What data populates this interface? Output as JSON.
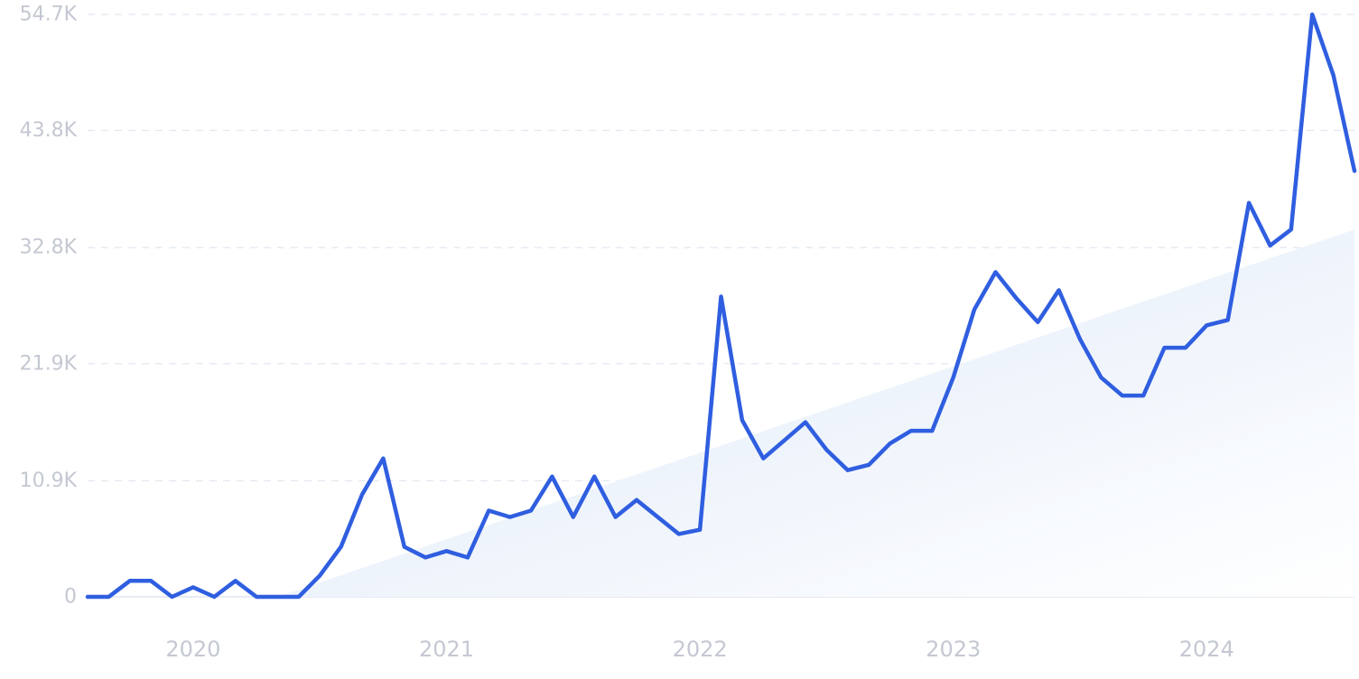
{
  "colors": {
    "line": "#2f5ee0",
    "trend_fill_start": "#dde8f8",
    "trend_fill_end": "#ffffff",
    "grid": "#e3e8f1",
    "tick_text": "#c4c8d2"
  },
  "chart_data": {
    "type": "line",
    "title": "",
    "xlabel": "",
    "ylabel": "",
    "grid": true,
    "legend": "none",
    "ylim": [
      0,
      54700
    ],
    "y_ticks": [
      {
        "value": 0,
        "label": "0"
      },
      {
        "value": 10900,
        "label": "10.9K"
      },
      {
        "value": 21900,
        "label": "21.9K"
      },
      {
        "value": 32800,
        "label": "32.8K"
      },
      {
        "value": 43800,
        "label": "43.8K"
      },
      {
        "value": 54700,
        "label": "54.7K"
      }
    ],
    "x_ticks": [
      {
        "value": "2020-01",
        "label": "2020"
      },
      {
        "value": "2021-01",
        "label": "2021"
      },
      {
        "value": "2022-01",
        "label": "2022"
      },
      {
        "value": "2023-01",
        "label": "2023"
      },
      {
        "value": "2024-01",
        "label": "2024"
      }
    ],
    "x": [
      "2019-08",
      "2019-09",
      "2019-10",
      "2019-11",
      "2019-12",
      "2020-01",
      "2020-02",
      "2020-03",
      "2020-04",
      "2020-05",
      "2020-06",
      "2020-07",
      "2020-08",
      "2020-09",
      "2020-10",
      "2020-11",
      "2020-12",
      "2021-01",
      "2021-02",
      "2021-03",
      "2021-04",
      "2021-05",
      "2021-06",
      "2021-07",
      "2021-08",
      "2021-09",
      "2021-10",
      "2021-11",
      "2021-12",
      "2022-01",
      "2022-02",
      "2022-03",
      "2022-04",
      "2022-05",
      "2022-06",
      "2022-07",
      "2022-08",
      "2022-09",
      "2022-10",
      "2022-11",
      "2022-12",
      "2023-01",
      "2023-02",
      "2023-03",
      "2023-04",
      "2023-05",
      "2023-06",
      "2023-07",
      "2023-08",
      "2023-09",
      "2023-10",
      "2023-11",
      "2023-12",
      "2024-01",
      "2024-02",
      "2024-03",
      "2024-04",
      "2024-05",
      "2024-06",
      "2024-07",
      "2024-08"
    ],
    "series": [
      {
        "values": [
          0,
          0,
          1500,
          1500,
          0,
          900,
          0,
          1500,
          0,
          0,
          0,
          2000,
          4700,
          9600,
          13000,
          4700,
          3700,
          4300,
          3700,
          8100,
          7500,
          8100,
          11300,
          7500,
          11300,
          7500,
          9100,
          7500,
          5900,
          6300,
          28200,
          16600,
          13000,
          14700,
          16400,
          13800,
          11900,
          12400,
          14400,
          15600,
          15600,
          20600,
          27000,
          30500,
          28000,
          25800,
          28800,
          24200,
          20600,
          18900,
          18900,
          23400,
          23400,
          25500,
          26000,
          37000,
          33000,
          34500,
          54700,
          49000,
          40000
        ]
      }
    ],
    "trend_series": {
      "x": [
        "2020-05",
        "2024-08"
      ],
      "values": [
        0,
        34500
      ]
    }
  }
}
